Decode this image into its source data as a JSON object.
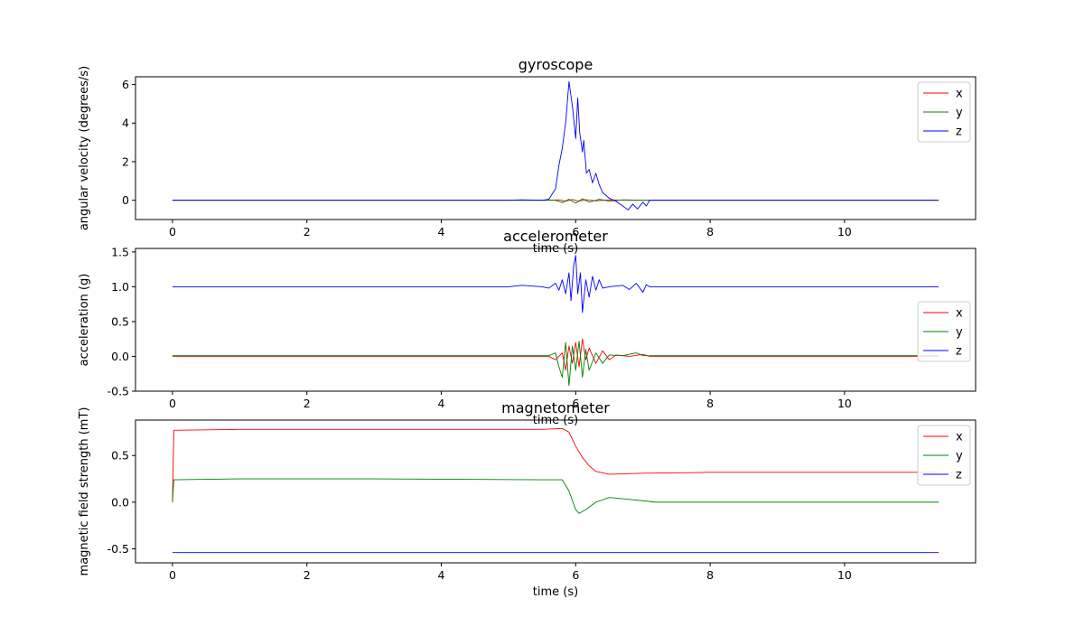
{
  "figure": {
    "colors": {
      "x": "#ff0000",
      "y": "#008000",
      "z": "#0000ff"
    }
  },
  "chart_data": [
    {
      "type": "line",
      "title": "gyroscope",
      "xlabel": "time (s)",
      "ylabel": "angular velocity (degrees/s)",
      "xlim": [
        -0.55,
        11.95
      ],
      "ylim": [
        -1.0,
        6.4
      ],
      "xticks": [
        0,
        2,
        4,
        6,
        8,
        10
      ],
      "yticks": [
        0,
        2,
        4,
        6
      ],
      "grid": false,
      "legend": "top-right",
      "series": [
        {
          "name": "x",
          "color": "#ff0000",
          "points": [
            [
              0,
              0
            ],
            [
              5.6,
              0
            ],
            [
              5.75,
              0.02
            ],
            [
              5.85,
              -0.05
            ],
            [
              5.95,
              0.04
            ],
            [
              6.05,
              -0.05
            ],
            [
              6.15,
              0.03
            ],
            [
              6.3,
              -0.03
            ],
            [
              6.5,
              0.02
            ],
            [
              6.8,
              0
            ],
            [
              11.4,
              0
            ]
          ]
        },
        {
          "name": "y",
          "color": "#008000",
          "points": [
            [
              0,
              0
            ],
            [
              5.7,
              0
            ],
            [
              5.8,
              -0.12
            ],
            [
              5.9,
              0.05
            ],
            [
              6.0,
              -0.15
            ],
            [
              6.1,
              0.08
            ],
            [
              6.2,
              -0.1
            ],
            [
              6.35,
              0.05
            ],
            [
              6.5,
              -0.05
            ],
            [
              6.7,
              0.02
            ],
            [
              7.0,
              0
            ],
            [
              11.4,
              0
            ]
          ]
        },
        {
          "name": "z",
          "color": "#0000ff",
          "points": [
            [
              0,
              0
            ],
            [
              5.0,
              0
            ],
            [
              5.2,
              0.02
            ],
            [
              5.5,
              0
            ],
            [
              5.6,
              0.05
            ],
            [
              5.7,
              0.6
            ],
            [
              5.75,
              1.8
            ],
            [
              5.8,
              2.7
            ],
            [
              5.85,
              4.0
            ],
            [
              5.9,
              6.15
            ],
            [
              5.95,
              4.9
            ],
            [
              6.0,
              3.2
            ],
            [
              6.03,
              5.3
            ],
            [
              6.06,
              3.5
            ],
            [
              6.1,
              2.5
            ],
            [
              6.12,
              3.1
            ],
            [
              6.16,
              1.4
            ],
            [
              6.2,
              1.6
            ],
            [
              6.25,
              0.9
            ],
            [
              6.3,
              1.4
            ],
            [
              6.35,
              0.8
            ],
            [
              6.4,
              0.4
            ],
            [
              6.5,
              0.1
            ],
            [
              6.6,
              -0.05
            ],
            [
              6.7,
              -0.3
            ],
            [
              6.78,
              -0.5
            ],
            [
              6.85,
              -0.2
            ],
            [
              6.92,
              -0.45
            ],
            [
              7.0,
              -0.1
            ],
            [
              7.05,
              -0.3
            ],
            [
              7.1,
              0
            ],
            [
              11.4,
              0
            ]
          ]
        }
      ]
    },
    {
      "type": "line",
      "title": "accelerometer",
      "xlabel": "time (s)",
      "ylabel": "acceleration (g)",
      "xlim": [
        -0.55,
        11.95
      ],
      "ylim": [
        -0.5,
        1.55
      ],
      "xticks": [
        0,
        2,
        4,
        6,
        8,
        10
      ],
      "yticks": [
        -0.5,
        0.0,
        0.5,
        1.0,
        1.5
      ],
      "grid": false,
      "legend": "center-right",
      "series": [
        {
          "name": "x",
          "color": "#ff0000",
          "points": [
            [
              0,
              0
            ],
            [
              5.6,
              0
            ],
            [
              5.7,
              -0.05
            ],
            [
              5.8,
              0.05
            ],
            [
              5.85,
              -0.2
            ],
            [
              5.9,
              0.15
            ],
            [
              5.95,
              -0.1
            ],
            [
              6.0,
              0.2
            ],
            [
              6.05,
              -0.15
            ],
            [
              6.1,
              0.25
            ],
            [
              6.15,
              -0.05
            ],
            [
              6.2,
              0.12
            ],
            [
              6.3,
              -0.1
            ],
            [
              6.4,
              0.08
            ],
            [
              6.5,
              -0.05
            ],
            [
              6.6,
              0.02
            ],
            [
              6.8,
              0
            ],
            [
              7.0,
              0.03
            ],
            [
              7.1,
              0
            ],
            [
              11.4,
              0
            ]
          ]
        },
        {
          "name": "y",
          "color": "#008000",
          "points": [
            [
              0,
              0.01
            ],
            [
              5.6,
              0.01
            ],
            [
              5.7,
              0.05
            ],
            [
              5.75,
              -0.15
            ],
            [
              5.8,
              -0.3
            ],
            [
              5.85,
              0.2
            ],
            [
              5.9,
              -0.42
            ],
            [
              5.95,
              0.15
            ],
            [
              6.0,
              -0.2
            ],
            [
              6.05,
              0.22
            ],
            [
              6.1,
              -0.3
            ],
            [
              6.15,
              0.1
            ],
            [
              6.2,
              -0.2
            ],
            [
              6.3,
              0.05
            ],
            [
              6.4,
              -0.1
            ],
            [
              6.5,
              0.02
            ],
            [
              6.7,
              0.01
            ],
            [
              6.9,
              0.05
            ],
            [
              7.0,
              0.01
            ],
            [
              11.4,
              0.01
            ]
          ]
        },
        {
          "name": "z",
          "color": "#0000ff",
          "points": [
            [
              0,
              1.0
            ],
            [
              5.0,
              1.0
            ],
            [
              5.2,
              1.02
            ],
            [
              5.5,
              1.0
            ],
            [
              5.6,
              0.98
            ],
            [
              5.7,
              1.05
            ],
            [
              5.75,
              0.95
            ],
            [
              5.8,
              1.1
            ],
            [
              5.85,
              0.9
            ],
            [
              5.9,
              1.2
            ],
            [
              5.93,
              0.8
            ],
            [
              5.97,
              1.3
            ],
            [
              6.0,
              1.45
            ],
            [
              6.03,
              0.9
            ],
            [
              6.07,
              1.2
            ],
            [
              6.1,
              0.63
            ],
            [
              6.15,
              1.1
            ],
            [
              6.2,
              0.85
            ],
            [
              6.25,
              1.15
            ],
            [
              6.3,
              0.95
            ],
            [
              6.35,
              1.1
            ],
            [
              6.4,
              0.98
            ],
            [
              6.5,
              1.0
            ],
            [
              6.7,
              1.02
            ],
            [
              6.8,
              0.96
            ],
            [
              6.9,
              1.05
            ],
            [
              7.0,
              0.92
            ],
            [
              7.05,
              1.03
            ],
            [
              7.1,
              1.0
            ],
            [
              11.4,
              1.0
            ]
          ]
        }
      ]
    },
    {
      "type": "line",
      "title": "magnetometer",
      "xlabel": "time (s)",
      "ylabel": "magnetic field strength (mT)",
      "xlim": [
        -0.55,
        11.95
      ],
      "ylim": [
        -0.65,
        0.88
      ],
      "xticks": [
        0,
        2,
        4,
        6,
        8,
        10
      ],
      "yticks": [
        -0.5,
        0.0,
        0.5
      ],
      "grid": false,
      "legend": "top-right",
      "series": [
        {
          "name": "x",
          "color": "#ff0000",
          "points": [
            [
              0,
              0.0
            ],
            [
              0.02,
              0.77
            ],
            [
              1,
              0.78
            ],
            [
              3,
              0.78
            ],
            [
              5.5,
              0.78
            ],
            [
              5.8,
              0.79
            ],
            [
              5.9,
              0.75
            ],
            [
              6.0,
              0.6
            ],
            [
              6.1,
              0.48
            ],
            [
              6.2,
              0.39
            ],
            [
              6.3,
              0.33
            ],
            [
              6.5,
              0.3
            ],
            [
              7.0,
              0.31
            ],
            [
              8.0,
              0.32
            ],
            [
              10.0,
              0.32
            ],
            [
              11.4,
              0.32
            ]
          ]
        },
        {
          "name": "y",
          "color": "#008000",
          "points": [
            [
              0,
              0.0
            ],
            [
              0.02,
              0.24
            ],
            [
              1,
              0.25
            ],
            [
              3,
              0.25
            ],
            [
              5.5,
              0.24
            ],
            [
              5.8,
              0.24
            ],
            [
              5.9,
              0.12
            ],
            [
              6.0,
              -0.08
            ],
            [
              6.05,
              -0.12
            ],
            [
              6.15,
              -0.08
            ],
            [
              6.3,
              0.0
            ],
            [
              6.5,
              0.05
            ],
            [
              6.8,
              0.03
            ],
            [
              7.2,
              0.0
            ],
            [
              8.0,
              0.0
            ],
            [
              11.4,
              0.0
            ]
          ]
        },
        {
          "name": "z",
          "color": "#0000ff",
          "points": [
            [
              0,
              -0.54
            ],
            [
              3,
              -0.54
            ],
            [
              6,
              -0.54
            ],
            [
              9,
              -0.54
            ],
            [
              11.4,
              -0.54
            ]
          ]
        }
      ]
    }
  ]
}
